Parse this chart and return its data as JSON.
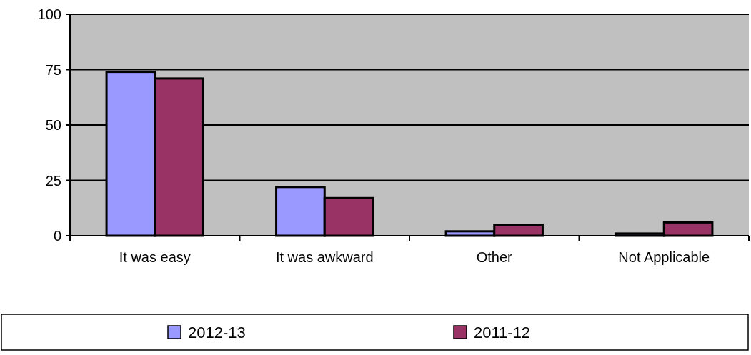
{
  "chart_data": {
    "type": "bar",
    "categories": [
      "It was easy",
      "It was awkward",
      "Other",
      "Not Applicable"
    ],
    "series": [
      {
        "name": "2012-13",
        "color": "#9999ff",
        "values": [
          74,
          22,
          2,
          1
        ]
      },
      {
        "name": "2011-12",
        "color": "#993366",
        "values": [
          71,
          17,
          5,
          6
        ]
      }
    ],
    "ylim": [
      0,
      100
    ],
    "yticks": [
      0,
      25,
      50,
      75,
      100
    ],
    "grid": "y",
    "legend": "bottom"
  }
}
